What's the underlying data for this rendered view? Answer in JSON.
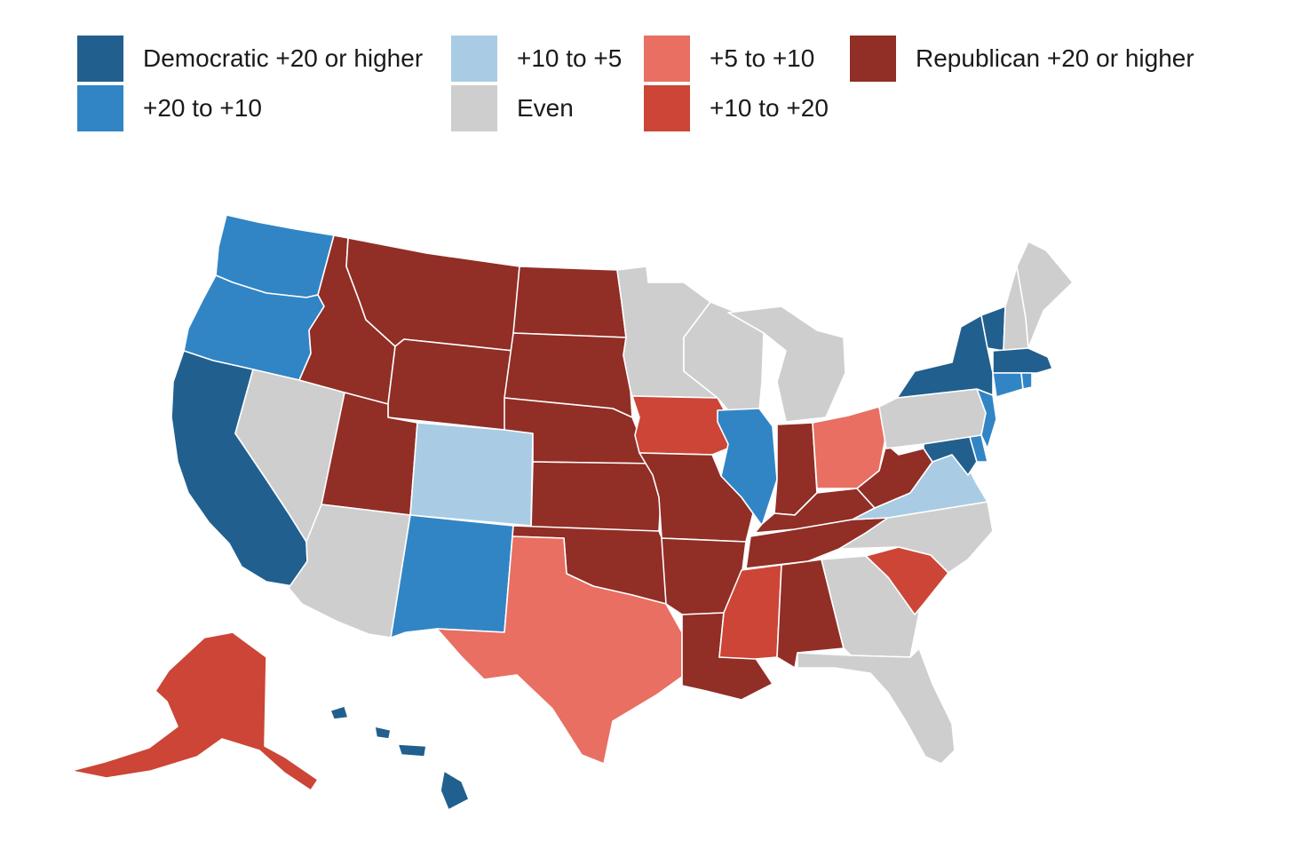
{
  "legend": {
    "items": [
      {
        "key": "dem20",
        "label": "Democratic +20 or higher",
        "color": "#215f8f"
      },
      {
        "key": "dem10",
        "label": "+20 to +10",
        "color": "#3185c5"
      },
      {
        "key": "dem5",
        "label": "+10 to +5",
        "color": "#a9cce4"
      },
      {
        "key": "even",
        "label": "Even",
        "color": "#cecece"
      },
      {
        "key": "rep5",
        "label": "+5 to +10",
        "color": "#e86f61"
      },
      {
        "key": "rep10",
        "label": "+10 to +20",
        "color": "#cc4536"
      },
      {
        "key": "rep20",
        "label": "Republican +20 or higher",
        "color": "#912e26"
      }
    ]
  },
  "states": {
    "Washington": "dem10",
    "Oregon": "dem10",
    "California": "dem20",
    "Nevada": "even",
    "Idaho": "rep20",
    "Montana": "rep20",
    "Wyoming": "rep20",
    "Utah": "rep20",
    "Arizona": "even",
    "Colorado": "dem5",
    "New Mexico": "dem10",
    "North Dakota": "rep20",
    "South Dakota": "rep20",
    "Nebraska": "rep20",
    "Kansas": "rep20",
    "Oklahoma": "rep20",
    "Texas": "rep5",
    "Minnesota": "even",
    "Iowa": "rep10",
    "Missouri": "rep20",
    "Arkansas": "rep20",
    "Louisiana": "rep20",
    "Wisconsin": "even",
    "Illinois": "dem10",
    "Michigan": "even",
    "Indiana": "rep20",
    "Ohio": "rep5",
    "Kentucky": "rep20",
    "Tennessee": "rep20",
    "Mississippi": "rep10",
    "Alabama": "rep20",
    "Georgia": "even",
    "Florida": "even",
    "South Carolina": "rep10",
    "North Carolina": "even",
    "Virginia": "dem5",
    "West Virginia": "rep20",
    "Maryland": "dem20",
    "Delaware": "dem10",
    "New Jersey": "dem10",
    "Pennsylvania": "even",
    "New York": "dem20",
    "Connecticut": "dem10",
    "Rhode Island": "dem10",
    "Massachusetts": "dem20",
    "Vermont": "dem20",
    "New Hampshire": "even",
    "Maine": "even",
    "Alaska": "rep10",
    "Hawaii": "dem20"
  }
}
